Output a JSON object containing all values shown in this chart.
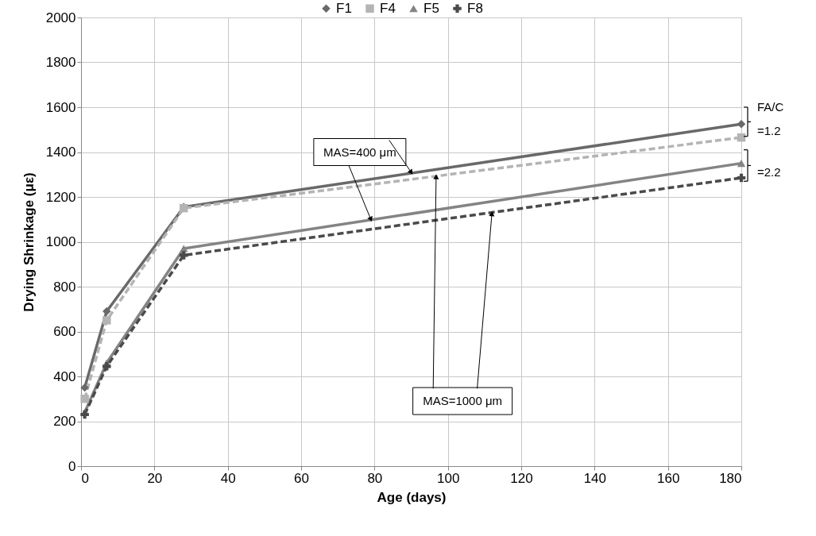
{
  "chart_data": {
    "type": "line",
    "xlabel": "Age (days)",
    "ylabel": "Drying Shrinkage (με)",
    "x": [
      1,
      7,
      28,
      180
    ],
    "series": [
      {
        "name": "F1",
        "color": "#696969",
        "marker": "diamond",
        "line_style": "solid",
        "values": [
          350,
          690,
          1155,
          1525
        ]
      },
      {
        "name": "F4",
        "color": "#b4b4b4",
        "marker": "square",
        "line_style": "dashed",
        "values": [
          300,
          650,
          1150,
          1465
        ]
      },
      {
        "name": "F5",
        "color": "#848484",
        "marker": "triangle",
        "line_style": "solid",
        "values": [
          240,
          460,
          970,
          1350
        ]
      },
      {
        "name": "F8",
        "color": "#4a4a4a",
        "marker": "cross",
        "line_style": "dashed",
        "values": [
          230,
          445,
          940,
          1285
        ]
      }
    ],
    "xlim": [
      0,
      180
    ],
    "xticks": [
      0,
      20,
      40,
      60,
      80,
      100,
      120,
      140,
      160,
      180
    ],
    "ylim": [
      0,
      2000
    ],
    "yticks": [
      0,
      200,
      400,
      600,
      800,
      1000,
      1200,
      1400,
      1600,
      1800,
      2000
    ],
    "grid": true,
    "legend": "top",
    "annotations": [
      {
        "text": "MAS=400 μm",
        "x": 90,
        "y": 1310
      },
      {
        "text": "MAS=1000 μm",
        "x": 112,
        "y": 1125
      },
      "FA/C",
      "=1.2",
      "=2.2"
    ]
  }
}
